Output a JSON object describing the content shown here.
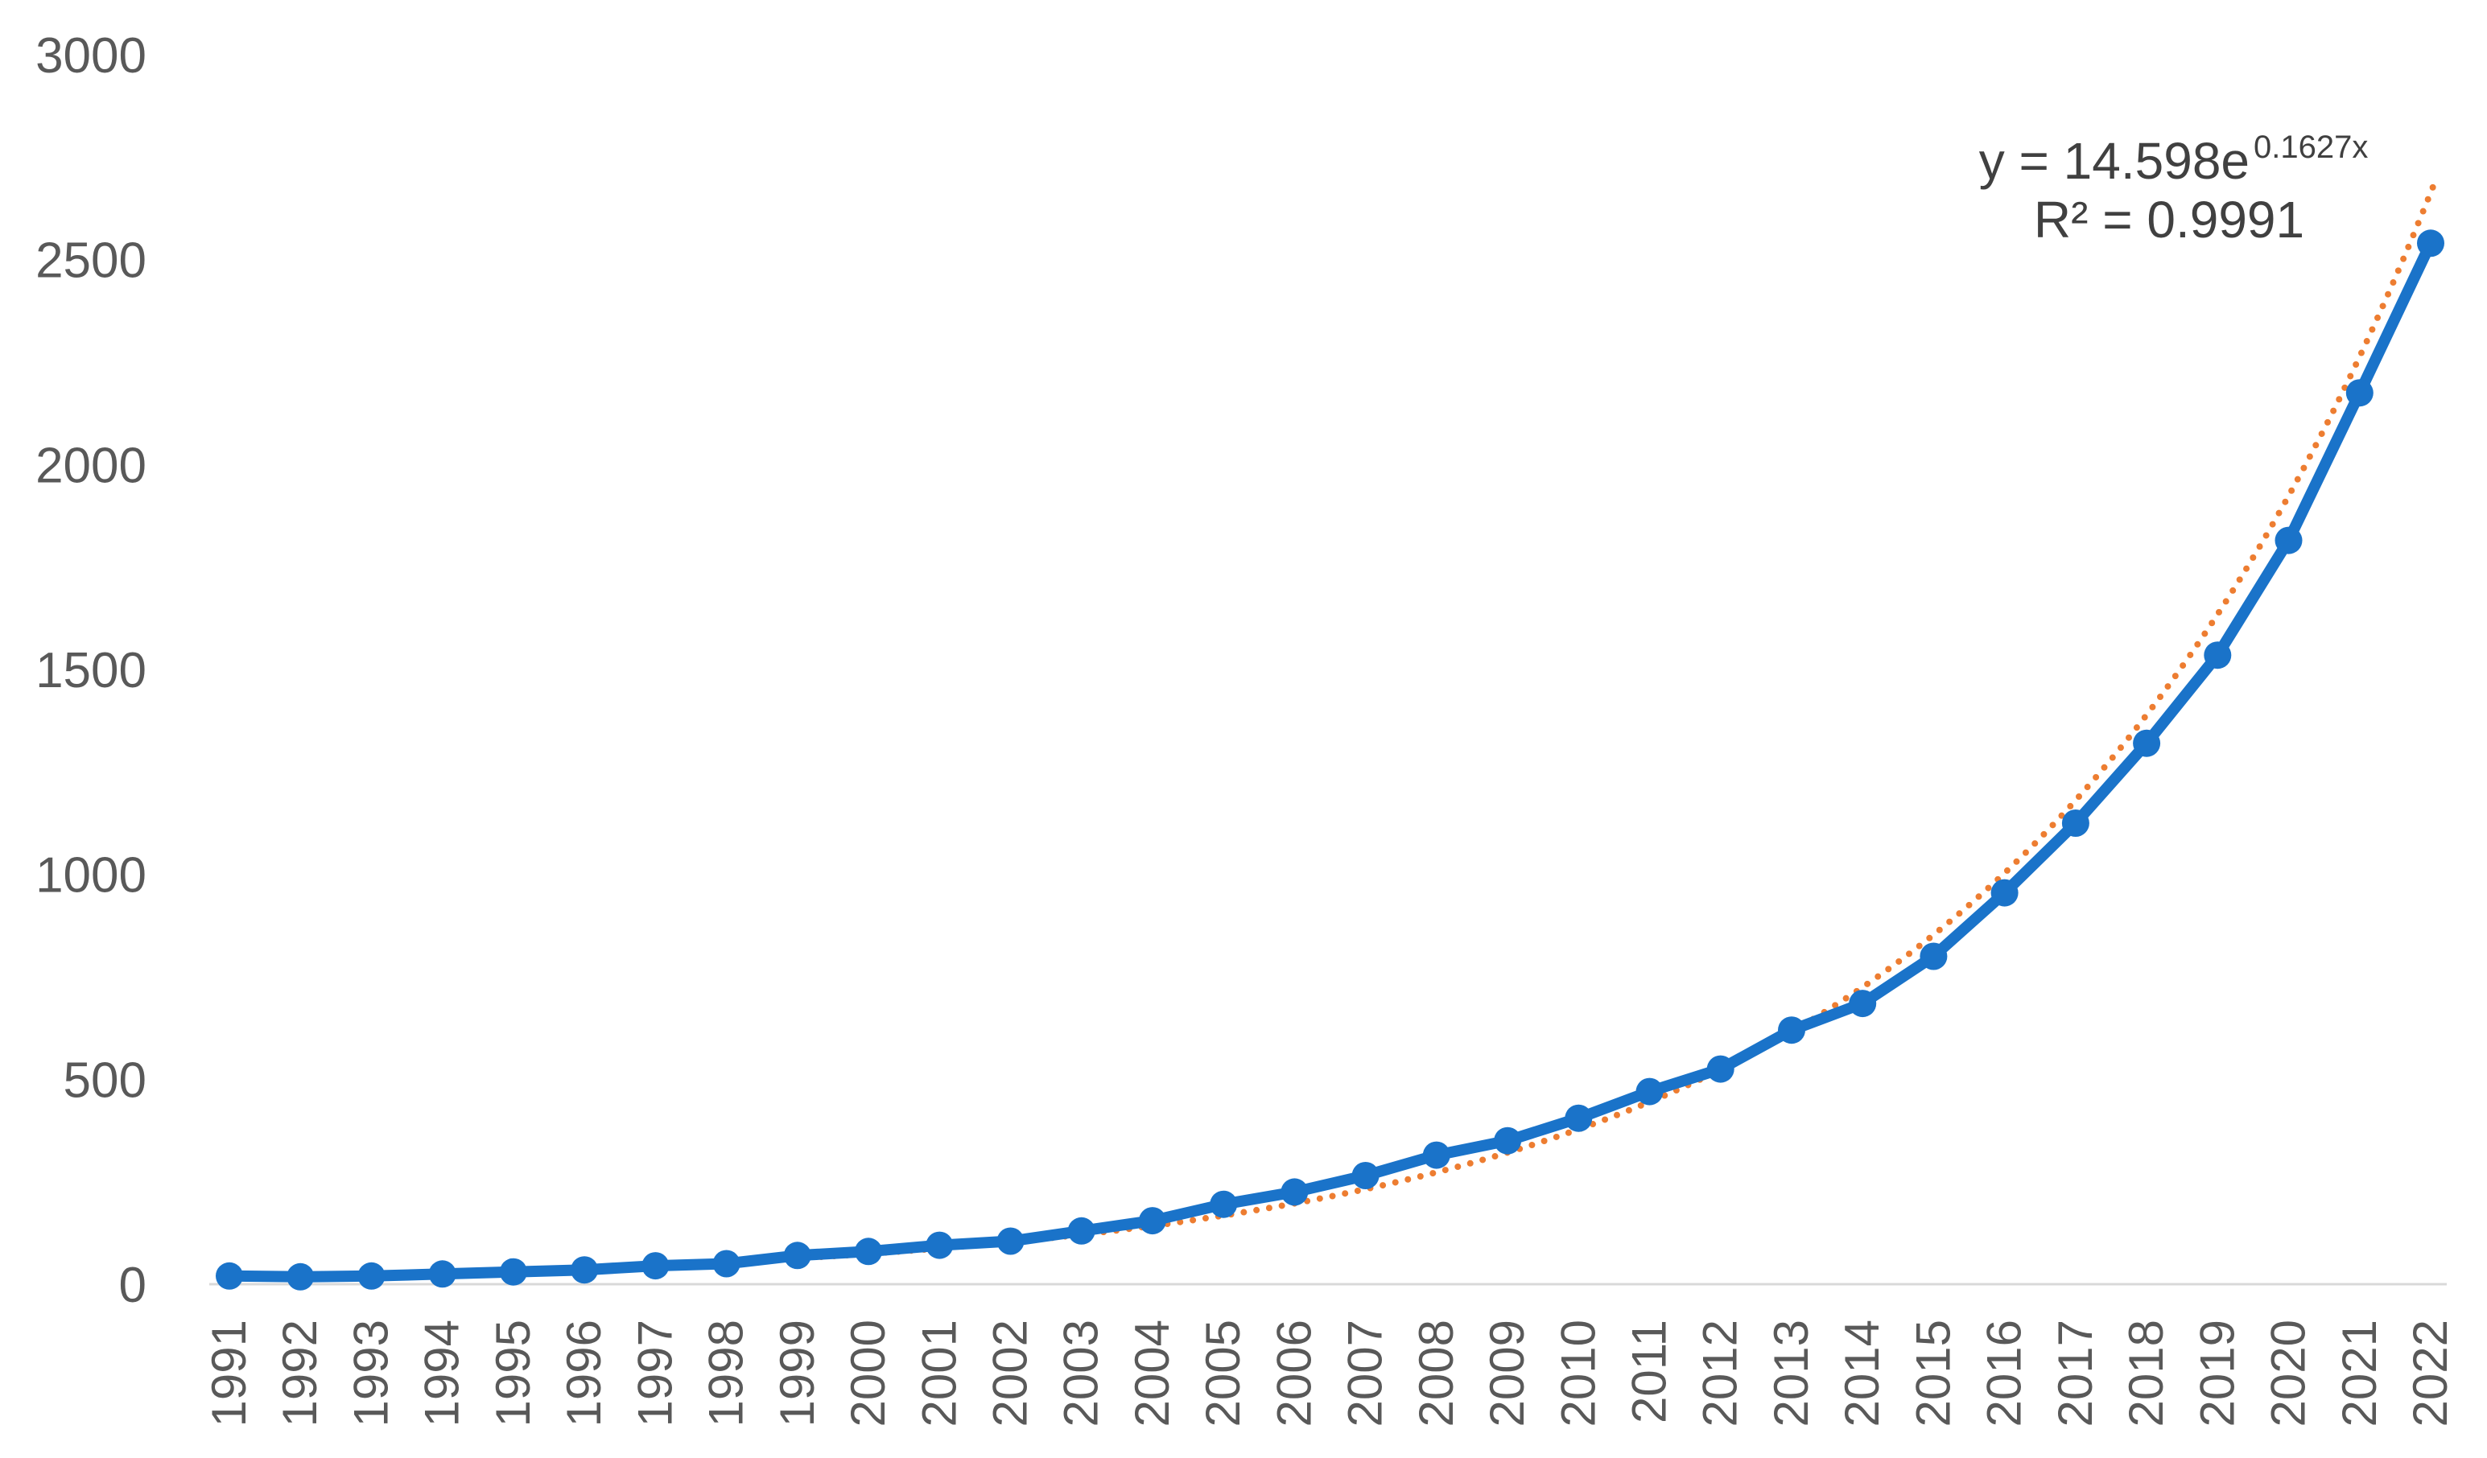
{
  "chart_data": {
    "type": "line",
    "title": "",
    "xlabel": "",
    "ylabel": "",
    "ylim": [
      0,
      3000
    ],
    "yticks": [
      0,
      500,
      1000,
      1500,
      2000,
      2500,
      3000
    ],
    "grid": false,
    "legend": "none",
    "categories": [
      "1991",
      "1992",
      "1993",
      "1994",
      "1995",
      "1996",
      "1997",
      "1998",
      "1999",
      "2000",
      "2001",
      "2002",
      "2003",
      "2004",
      "2005",
      "2006",
      "2007",
      "2008",
      "2009",
      "2010",
      "2011",
      "2012",
      "2013",
      "2014",
      "2015",
      "2016",
      "2017",
      "2018",
      "2019",
      "2020",
      "2021",
      "2022"
    ],
    "series": [
      {
        "type": "line-markers",
        "color": "#1a73c9",
        "values": [
          20,
          18,
          20,
          25,
          30,
          35,
          45,
          50,
          70,
          80,
          95,
          105,
          130,
          155,
          195,
          225,
          265,
          315,
          350,
          405,
          470,
          525,
          620,
          685,
          800,
          955,
          1125,
          1320,
          1535,
          1815,
          2175,
          2540
        ]
      },
      {
        "type": "trendline-exponential",
        "color": "#ed7d31",
        "a": 14.598,
        "b": 0.1627
      }
    ],
    "annotation": {
      "equation_prefix": "y = 14.598e",
      "equation_exponent": "0.1627x",
      "r_squared": "R² = 0.9991"
    }
  }
}
